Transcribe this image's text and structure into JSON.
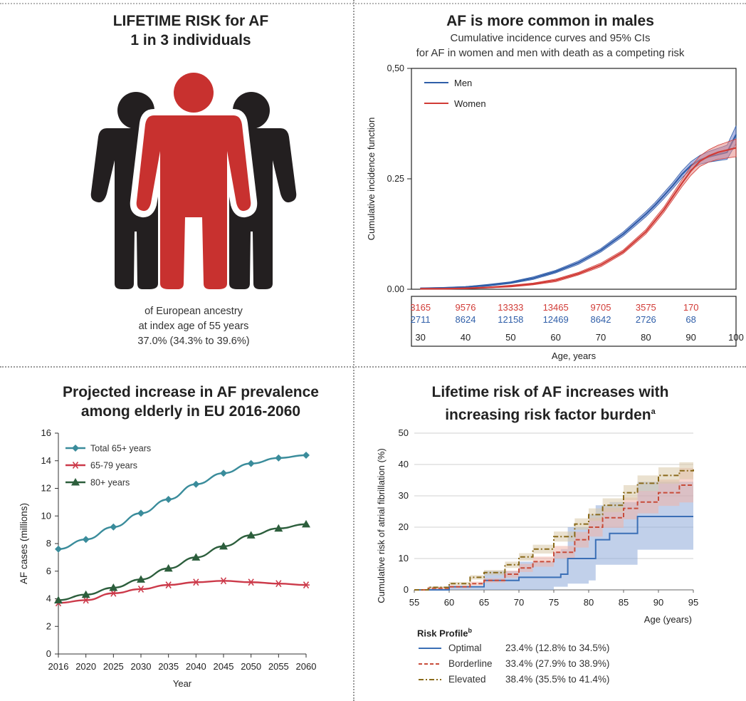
{
  "panels": {
    "lifetime_risk": {
      "title_line1": "LIFETIME RISK for AF",
      "title_line2": "1 in 3 individuals",
      "caption_line1": "of European ancestry",
      "caption_line2": "at index age of 55 years",
      "caption_line3": "37.0% (34.3% to 39.6%)",
      "colors": {
        "highlight": "#c8312f",
        "figure": "#231f20"
      }
    },
    "sex_difference": {
      "title": "AF is more common in males",
      "subtitle_line1": "Cumulative incidence curves and 95% CIs",
      "subtitle_line2": "for AF in women and men with death as a competing risk"
    },
    "prevalence": {
      "title_line1": "Projected increase in AF prevalence",
      "title_line2": "among elderly in EU 2016-2060"
    },
    "risk_factor": {
      "title_line1": "Lifetime risk of AF increases with",
      "title_line2": "increasing risk factor burden",
      "title_sup": "a",
      "legend_title": "Risk Profile",
      "legend_title_sup": "b",
      "profiles": [
        {
          "name": "Optimal",
          "value": "23.4% (12.8% to 34.5%)"
        },
        {
          "name": "Borderline",
          "value": "33.4% (27.9% to 38.9%)"
        },
        {
          "name": "Elevated",
          "value": "38.4% (35.5% to 41.4%)"
        }
      ]
    }
  },
  "chart_data": [
    {
      "id": "cumulative-incidence",
      "type": "line",
      "xlabel": "Age, years",
      "ylabel": "Cumulative incidence function",
      "xlim": [
        28,
        100
      ],
      "ylim": [
        0,
        0.5
      ],
      "x_ticks": [
        "30",
        "40",
        "50",
        "60",
        "70",
        "80",
        "90",
        "100"
      ],
      "y_ticks": [
        "0.00",
        "0.25",
        "0,50"
      ],
      "y_tick_values": [
        0,
        0.25,
        0.5
      ],
      "legend_position": "top-left",
      "series": [
        {
          "name": "Men",
          "color": "#2f5ea8",
          "band_color": "#6f7fd0",
          "x": [
            30,
            35,
            40,
            45,
            50,
            55,
            60,
            65,
            70,
            75,
            80,
            82,
            84,
            86,
            88,
            90,
            92,
            94,
            96,
            98,
            100
          ],
          "y": [
            0.002,
            0.003,
            0.005,
            0.009,
            0.015,
            0.025,
            0.04,
            0.06,
            0.088,
            0.125,
            0.17,
            0.19,
            0.212,
            0.235,
            0.26,
            0.28,
            0.293,
            0.3,
            0.305,
            0.31,
            0.35
          ],
          "ci_halfwidth": [
            0.001,
            0.001,
            0.001,
            0.002,
            0.002,
            0.003,
            0.003,
            0.004,
            0.004,
            0.005,
            0.006,
            0.006,
            0.007,
            0.007,
            0.008,
            0.009,
            0.01,
            0.012,
            0.014,
            0.016,
            0.02
          ]
        },
        {
          "name": "Women",
          "color": "#d13b36",
          "band_color": "#e58a86",
          "x": [
            30,
            35,
            40,
            45,
            50,
            55,
            60,
            65,
            70,
            75,
            80,
            82,
            84,
            86,
            88,
            90,
            92,
            94,
            96,
            98,
            100
          ],
          "y": [
            0.001,
            0.001,
            0.002,
            0.004,
            0.007,
            0.012,
            0.02,
            0.035,
            0.055,
            0.085,
            0.13,
            0.155,
            0.18,
            0.21,
            0.24,
            0.268,
            0.29,
            0.302,
            0.31,
            0.315,
            0.32
          ],
          "ci_halfwidth": [
            0.001,
            0.001,
            0.001,
            0.001,
            0.002,
            0.002,
            0.003,
            0.003,
            0.004,
            0.004,
            0.005,
            0.006,
            0.006,
            0.007,
            0.008,
            0.01,
            0.012,
            0.014,
            0.016,
            0.018,
            0.02
          ]
        }
      ],
      "at_risk_table": {
        "Women": [
          "3165",
          "9576",
          "13333",
          "13465",
          "9705",
          "3575",
          "170"
        ],
        "Men": [
          "2711",
          "8624",
          "12158",
          "12469",
          "8642",
          "2726",
          "68"
        ]
      }
    },
    {
      "id": "eu-prevalence",
      "type": "line",
      "xlabel": "Year",
      "ylabel": "AF cases (millions)",
      "categories": [
        "2016",
        "2020",
        "2025",
        "2030",
        "2035",
        "2040",
        "2045",
        "2050",
        "2055",
        "2060"
      ],
      "ylim": [
        0,
        16
      ],
      "y_ticks": [
        "0",
        "2",
        "4",
        "6",
        "8",
        "10",
        "12",
        "14",
        "16"
      ],
      "legend_position": "top-left",
      "series": [
        {
          "name": "Total 65+ years",
          "color": "#3a8c9b",
          "marker": "diamond",
          "values": [
            7.6,
            8.3,
            9.2,
            10.2,
            11.2,
            12.3,
            13.1,
            13.8,
            14.2,
            14.4
          ]
        },
        {
          "name": "65-79 years",
          "color": "#cc3a4a",
          "marker": "asterisk",
          "values": [
            3.7,
            3.9,
            4.4,
            4.7,
            5.0,
            5.2,
            5.3,
            5.2,
            5.1,
            5.0
          ]
        },
        {
          "name": "80+ years",
          "color": "#2c5e3c",
          "marker": "triangle",
          "values": [
            3.9,
            4.3,
            4.8,
            5.4,
            6.2,
            7.0,
            7.8,
            8.6,
            9.1,
            9.4
          ]
        }
      ]
    },
    {
      "id": "risk-profile",
      "type": "line",
      "xlabel": "Age (years)",
      "ylabel": "Cumulative risk of atrial fibrillation (%)",
      "xlim": [
        55,
        95
      ],
      "ylim": [
        0,
        50
      ],
      "x_ticks": [
        "55",
        "60",
        "65",
        "70",
        "75",
        "80",
        "85",
        "90",
        "95"
      ],
      "y_ticks": [
        "0",
        "10",
        "20",
        "30",
        "40",
        "50"
      ],
      "series": [
        {
          "name": "Optimal",
          "color": "#3b6fb6",
          "band_color": "#8ea9d8",
          "style": "solid",
          "x": [
            55,
            60,
            65,
            70,
            75,
            76,
            77,
            80,
            81,
            83,
            87,
            95
          ],
          "y": [
            0,
            1,
            3,
            4,
            4,
            5,
            10,
            10,
            16,
            18,
            23.4,
            23.4
          ],
          "low": [
            0,
            0,
            0,
            0,
            1,
            1,
            2,
            3,
            8,
            8,
            12.8,
            12.8
          ],
          "high": [
            0,
            1,
            6,
            9,
            12,
            13,
            20,
            24,
            27,
            28,
            34.5,
            34.5
          ]
        },
        {
          "name": "Borderline",
          "color": "#c84c3a",
          "band_color": "#f0b3a6",
          "style": "dashed",
          "x": [
            55,
            57,
            60,
            63,
            65,
            68,
            70,
            72,
            75,
            78,
            80,
            82,
            85,
            87,
            90,
            93,
            95
          ],
          "y": [
            0,
            0.5,
            1,
            2,
            3,
            5,
            7,
            9,
            12,
            16,
            20,
            23,
            26,
            28,
            31,
            33.4,
            33.4
          ],
          "low": [
            0,
            0.2,
            0.6,
            1.4,
            2.3,
            3.9,
            5.7,
            7.4,
            10,
            13.5,
            17,
            19.8,
            22.5,
            24.4,
            26.8,
            27.9,
            27.9
          ],
          "high": [
            0,
            0.8,
            1.4,
            2.6,
            3.7,
            6.1,
            8.3,
            10.6,
            14,
            18.5,
            23,
            26.2,
            29.5,
            31.6,
            35.2,
            38.9,
            38.9
          ]
        },
        {
          "name": "Elevated",
          "color": "#8a6a1a",
          "band_color": "#d8c8a8",
          "style": "dashdot",
          "x": [
            55,
            57,
            60,
            63,
            65,
            68,
            70,
            72,
            75,
            78,
            80,
            82,
            85,
            87,
            90,
            93,
            95
          ],
          "y": [
            0,
            0.8,
            2,
            4,
            5.5,
            8,
            10.5,
            13,
            17,
            21,
            24,
            27,
            31,
            34,
            36.5,
            38,
            38.4
          ],
          "low": [
            0,
            0.5,
            1.5,
            3.3,
            4.7,
            7,
            9.3,
            11.6,
            15.4,
            19.2,
            22,
            24.8,
            28.6,
            31.5,
            33.9,
            35.3,
            35.5
          ],
          "high": [
            0,
            1.1,
            2.5,
            4.7,
            6.3,
            9,
            11.7,
            14.4,
            18.6,
            22.8,
            26,
            29.2,
            33.4,
            36.5,
            39.1,
            40.7,
            41.4
          ]
        }
      ]
    }
  ]
}
